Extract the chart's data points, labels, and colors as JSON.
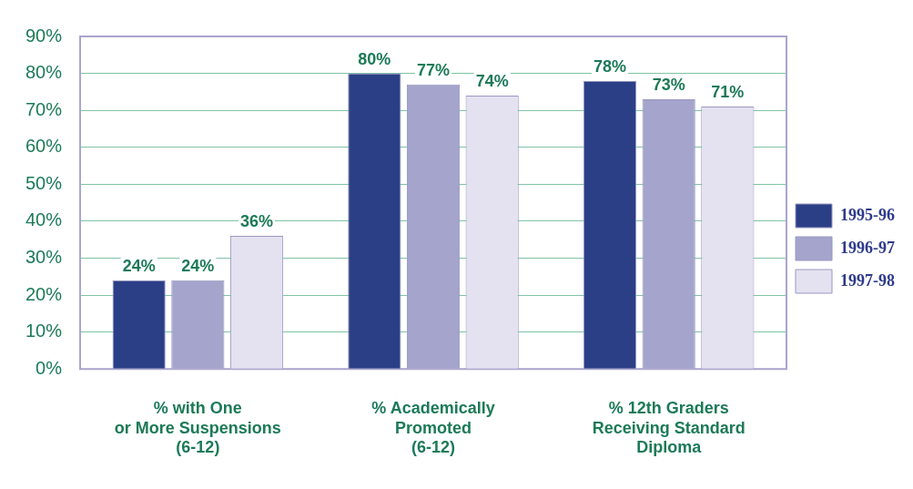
{
  "chart_data": {
    "type": "bar",
    "categories": [
      "% with One\nor More Suspensions\n(6-12)",
      "% Academically\nPromoted\n(6-12)",
      "% 12th Graders\nReceiving Standard\nDiploma"
    ],
    "series": [
      {
        "name": "1995-96",
        "color": "#2b3f86",
        "values": [
          24,
          80,
          78
        ],
        "value_labels": [
          "24%",
          "80%",
          "78%"
        ]
      },
      {
        "name": "1996-97",
        "color": "#a4a4cc",
        "values": [
          24,
          77,
          73
        ],
        "value_labels": [
          "24%",
          "77%",
          "73%"
        ]
      },
      {
        "name": "1997-98",
        "color": "#e4e2f0",
        "values": [
          36,
          74,
          71
        ],
        "value_labels": [
          "36%",
          "74%",
          "71%"
        ]
      }
    ],
    "ylim": [
      0,
      90
    ],
    "yticks": [
      {
        "value": 0,
        "label": "0%"
      },
      {
        "value": 10,
        "label": "10%"
      },
      {
        "value": 20,
        "label": "20%"
      },
      {
        "value": 30,
        "label": "30%"
      },
      {
        "value": 40,
        "label": "40%"
      },
      {
        "value": 50,
        "label": "50%"
      },
      {
        "value": 60,
        "label": "60%"
      },
      {
        "value": 70,
        "label": "70%"
      },
      {
        "value": 80,
        "label": "80%"
      },
      {
        "value": 90,
        "label": "90%"
      }
    ],
    "grid": "y",
    "legend": "right"
  }
}
